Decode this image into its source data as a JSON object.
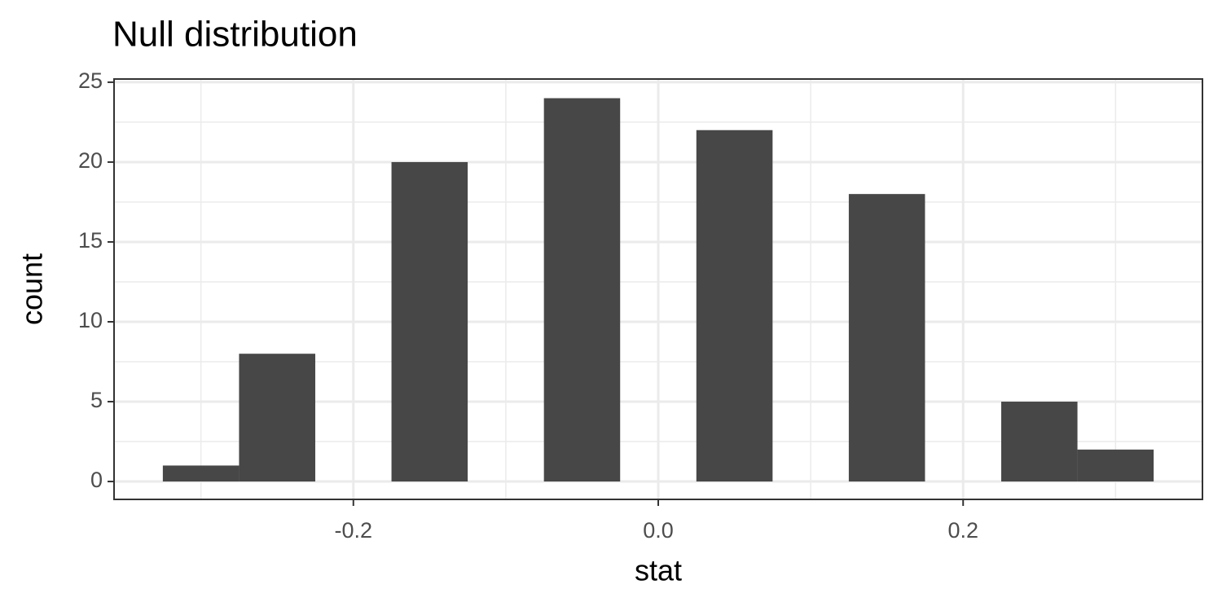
{
  "chart_data": {
    "type": "histogram",
    "title": "Null distribution",
    "x_label": "stat",
    "y_label": "count",
    "bins": [
      -0.325,
      -0.275,
      -0.225,
      -0.175,
      -0.125,
      -0.075,
      -0.025,
      0.025,
      0.075,
      0.125,
      0.175,
      0.225,
      0.275,
      0.325
    ],
    "counts": [
      1,
      8,
      0,
      20,
      0,
      24,
      0,
      22,
      0,
      18,
      0,
      5,
      2
    ],
    "color": "#474747",
    "xlim": [
      -0.357,
      0.357
    ],
    "ylim": [
      -1.12,
      25.2
    ],
    "xticks": [
      -0.2,
      {
        "value": 0,
        "label": "0.0"
      },
      0.2
    ],
    "yticks": [
      0,
      5,
      10,
      15,
      20,
      25
    ],
    "x_minor_grid": [
      -0.3,
      -0.1,
      0.1,
      0.3
    ],
    "y_minor_grid": [
      2.5,
      7.5,
      12.5,
      17.5,
      22.5
    ],
    "grid": true
  }
}
